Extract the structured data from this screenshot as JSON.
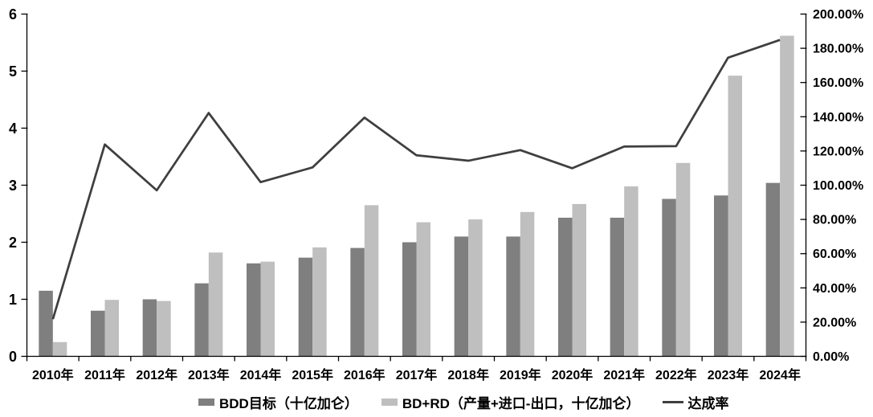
{
  "chart_data": {
    "type": "bar",
    "subtype": "bar-line-combo",
    "title": "",
    "categories": [
      "2010年",
      "2011年",
      "2012年",
      "2013年",
      "2014年",
      "2015年",
      "2016年",
      "2017年",
      "2018年",
      "2019年",
      "2020年",
      "2021年",
      "2022年",
      "2023年",
      "2024年"
    ],
    "series": [
      {
        "name": "BDD目标（十亿加仑）",
        "type": "bar",
        "axis": "left",
        "color": "#7f7f7f",
        "values": [
          1.15,
          0.8,
          1.0,
          1.28,
          1.63,
          1.73,
          1.9,
          2.0,
          2.1,
          2.1,
          2.43,
          2.43,
          2.76,
          2.82,
          3.04
        ]
      },
      {
        "name": "BD+RD（产量+进口-出口，十亿加仑）",
        "type": "bar",
        "axis": "left",
        "color": "#bfbfbf",
        "values": [
          0.25,
          0.99,
          0.97,
          1.82,
          1.66,
          1.91,
          2.65,
          2.35,
          2.4,
          2.53,
          2.67,
          2.98,
          3.39,
          4.92,
          5.62
        ]
      },
      {
        "name": "达成率",
        "type": "line",
        "axis": "right",
        "color": "#3f3f3f",
        "values_percent": [
          21.7,
          123.8,
          97.0,
          142.2,
          101.8,
          110.4,
          139.5,
          117.5,
          114.3,
          120.5,
          109.9,
          122.6,
          122.8,
          174.5,
          184.9
        ]
      }
    ],
    "left_axis": {
      "min": 0,
      "max": 6,
      "step": 1,
      "tick_labels": [
        "0",
        "1",
        "2",
        "3",
        "4",
        "5",
        "6"
      ]
    },
    "right_axis": {
      "min": 0,
      "max": 200,
      "step": 20,
      "tick_labels": [
        "0.00%",
        "20.00%",
        "40.00%",
        "60.00%",
        "80.00%",
        "100.00%",
        "120.00%",
        "140.00%",
        "160.00%",
        "180.00%",
        "200.00%"
      ]
    },
    "grid": "off",
    "legend_position": "bottom",
    "colors": {
      "axis": "#000000",
      "text": "#000000",
      "background": "#ffffff"
    }
  }
}
